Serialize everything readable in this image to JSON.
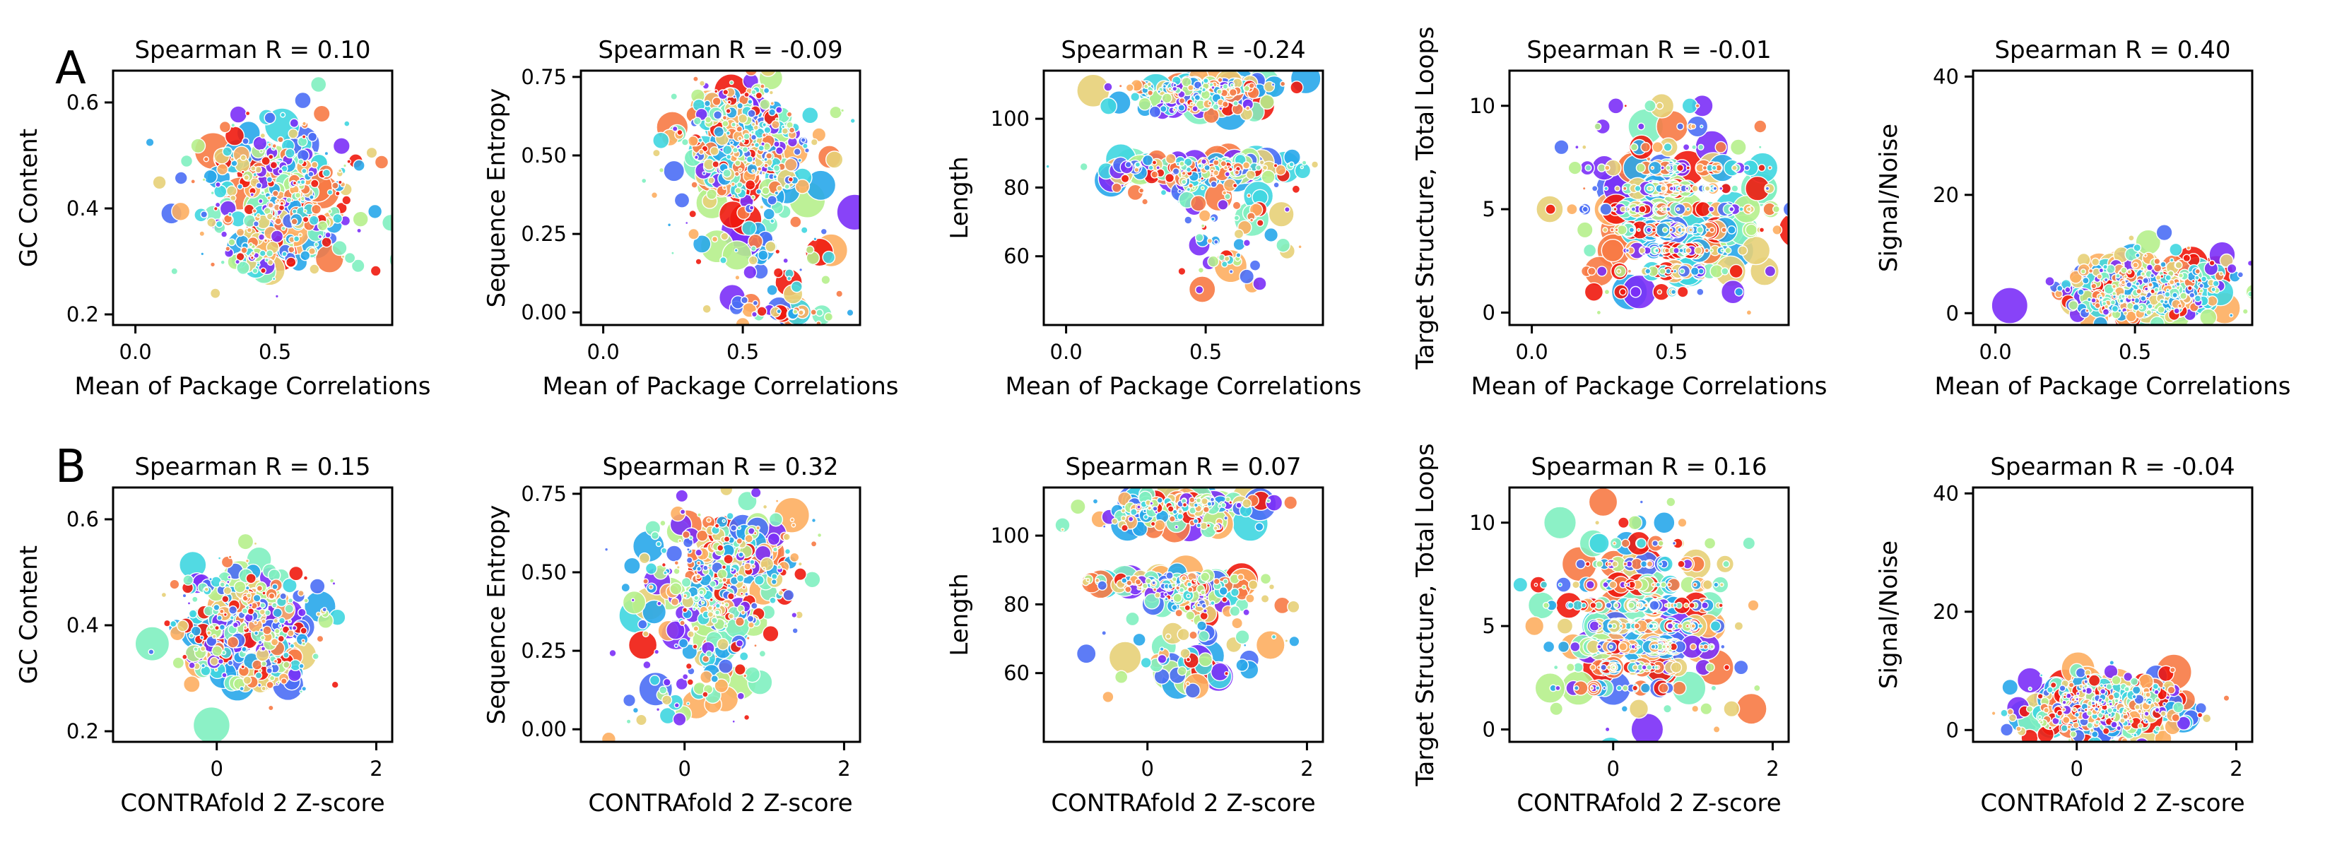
{
  "figure": {
    "rows": [
      {
        "letter": "A",
        "xlabel": "Mean of Package Correlations"
      },
      {
        "letter": "B",
        "xlabel": "CONTRAfold 2 Z-score"
      }
    ],
    "palette": [
      "#7b2ff7",
      "#4b6ef5",
      "#28a7ea",
      "#3fd6e0",
      "#7ff0c0",
      "#b6f08c",
      "#e7d078",
      "#fdae61",
      "#f77a45",
      "#f01a0e"
    ]
  },
  "chart_data": [
    {
      "type": "scatter",
      "row": 0,
      "col": 0,
      "title": "Spearman R = 0.10",
      "xlabel": "Mean of Package Correlations",
      "ylabel": "GC Content",
      "xlim": [
        -0.08,
        0.92
      ],
      "ylim": [
        0.18,
        0.66
      ],
      "xticks": [
        {
          "v": 0.0,
          "label": "0.0"
        },
        {
          "v": 0.5,
          "label": "0.5"
        }
      ],
      "yticks": [
        {
          "v": 0.2,
          "label": "0.2"
        },
        {
          "v": 0.4,
          "label": "0.4"
        },
        {
          "v": 0.6,
          "label": "0.6"
        }
      ],
      "clouds": [
        {
          "cx": 0.5,
          "cy": 0.42,
          "sx": 0.15,
          "sy": 0.065,
          "n": 260
        },
        {
          "cx": 0.55,
          "cy": 0.47,
          "sx": 0.12,
          "sy": 0.05,
          "n": 90
        },
        {
          "cx": 0.45,
          "cy": 0.31,
          "sx": 0.08,
          "sy": 0.025,
          "n": 45
        }
      ]
    },
    {
      "type": "scatter",
      "row": 0,
      "col": 1,
      "title": "Spearman R = -0.09",
      "xlabel": "Mean of Package Correlations",
      "ylabel": "Sequence Entropy",
      "xlim": [
        -0.08,
        0.92
      ],
      "ylim": [
        -0.04,
        0.77
      ],
      "xticks": [
        {
          "v": 0.0,
          "label": "0.0"
        },
        {
          "v": 0.5,
          "label": "0.5"
        }
      ],
      "yticks": [
        {
          "v": 0.0,
          "label": "0.00"
        },
        {
          "v": 0.25,
          "label": "0.25"
        },
        {
          "v": 0.5,
          "label": "0.50"
        },
        {
          "v": 0.75,
          "label": "0.75"
        }
      ],
      "clouds": [
        {
          "cx": 0.5,
          "cy": 0.52,
          "sx": 0.14,
          "sy": 0.11,
          "n": 260
        },
        {
          "cx": 0.5,
          "cy": 0.62,
          "sx": 0.1,
          "sy": 0.06,
          "n": 80
        },
        {
          "cx": 0.55,
          "cy": 0.18,
          "sx": 0.14,
          "sy": 0.11,
          "n": 60
        },
        {
          "cx": 0.65,
          "cy": 0.0,
          "sx": 0.08,
          "sy": 0.004,
          "n": 25
        }
      ]
    },
    {
      "type": "scatter",
      "row": 0,
      "col": 2,
      "title": "Spearman R = -0.24",
      "xlabel": "Mean of Package Correlations",
      "ylabel": "Length",
      "xlim": [
        -0.08,
        0.92
      ],
      "ylim": [
        40,
        114
      ],
      "xticks": [
        {
          "v": 0.0,
          "label": "0.0"
        },
        {
          "v": 0.5,
          "label": "0.5"
        }
      ],
      "yticks": [
        {
          "v": 60,
          "label": "60"
        },
        {
          "v": 80,
          "label": "80"
        },
        {
          "v": 100,
          "label": "100"
        }
      ],
      "clouds": [
        {
          "cx": 0.5,
          "cy": 109,
          "sx": 0.14,
          "sy": 1.2,
          "n": 120
        },
        {
          "cx": 0.48,
          "cy": 104,
          "sx": 0.12,
          "sy": 1.5,
          "n": 60
        },
        {
          "cx": 0.52,
          "cy": 86,
          "sx": 0.16,
          "sy": 1.2,
          "n": 120
        },
        {
          "cx": 0.45,
          "cy": 82,
          "sx": 0.15,
          "sy": 3.0,
          "n": 60
        },
        {
          "cx": 0.6,
          "cy": 64,
          "sx": 0.1,
          "sy": 8.0,
          "n": 60
        }
      ]
    },
    {
      "type": "scatter",
      "row": 0,
      "col": 3,
      "title": "Spearman R = -0.01",
      "xlabel": "Mean of Package Correlations",
      "ylabel": "Target Structure, Total Loops",
      "xlim": [
        -0.08,
        0.92
      ],
      "ylim": [
        -0.6,
        11.7
      ],
      "xticks": [
        {
          "v": 0.0,
          "label": "0.0"
        },
        {
          "v": 0.5,
          "label": "0.5"
        }
      ],
      "yticks": [
        {
          "v": 0,
          "label": "0"
        },
        {
          "v": 5,
          "label": "5"
        },
        {
          "v": 10,
          "label": "10"
        }
      ],
      "integerY": true,
      "clouds": [
        {
          "cx": 0.5,
          "cy": 4.8,
          "sx": 0.16,
          "sy": 2.2,
          "n": 420
        }
      ]
    },
    {
      "type": "scatter",
      "row": 0,
      "col": 4,
      "title": "Spearman R = 0.40",
      "xlabel": "Mean of Package Correlations",
      "ylabel": "Signal/Noise",
      "xlim": [
        -0.08,
        0.92
      ],
      "ylim": [
        -2,
        41
      ],
      "xticks": [
        {
          "v": 0.0,
          "label": "0.0"
        },
        {
          "v": 0.5,
          "label": "0.5"
        }
      ],
      "yticks": [
        {
          "v": 0,
          "label": "0"
        },
        {
          "v": 20,
          "label": "20"
        },
        {
          "v": 40,
          "label": "40"
        }
      ],
      "clouds": [
        {
          "cx": 0.55,
          "cy": 4.5,
          "sx": 0.14,
          "sy": 2.8,
          "n": 330
        },
        {
          "cx": 0.45,
          "cy": 2.0,
          "sx": 0.12,
          "sy": 1.2,
          "n": 80
        }
      ]
    },
    {
      "type": "scatter",
      "row": 1,
      "col": 0,
      "title": "Spearman R = 0.15",
      "xlabel": "CONTRAfold 2 Z-score",
      "ylabel": "GC Content",
      "xlim": [
        -1.3,
        2.2
      ],
      "ylim": [
        0.18,
        0.66
      ],
      "xticks": [
        {
          "v": 0,
          "label": "0"
        },
        {
          "v": 2,
          "label": "2"
        }
      ],
      "yticks": [
        {
          "v": 0.2,
          "label": "0.2"
        },
        {
          "v": 0.4,
          "label": "0.4"
        },
        {
          "v": 0.6,
          "label": "0.6"
        }
      ],
      "clouds": [
        {
          "cx": 0.4,
          "cy": 0.41,
          "sx": 0.48,
          "sy": 0.055,
          "n": 280
        },
        {
          "cx": 0.5,
          "cy": 0.31,
          "sx": 0.3,
          "sy": 0.025,
          "n": 50
        }
      ]
    },
    {
      "type": "scatter",
      "row": 1,
      "col": 1,
      "title": "Spearman R = 0.32",
      "xlabel": "CONTRAfold 2 Z-score",
      "ylabel": "Sequence Entropy",
      "xlim": [
        -1.3,
        2.2
      ],
      "ylim": [
        -0.04,
        0.77
      ],
      "xticks": [
        {
          "v": 0,
          "label": "0"
        },
        {
          "v": 2,
          "label": "2"
        }
      ],
      "yticks": [
        {
          "v": 0.0,
          "label": "0.00"
        },
        {
          "v": 0.25,
          "label": "0.25"
        },
        {
          "v": 0.5,
          "label": "0.50"
        },
        {
          "v": 0.75,
          "label": "0.75"
        }
      ],
      "clouds": [
        {
          "cx": 0.4,
          "cy": 0.45,
          "sx": 0.5,
          "sy": 0.12,
          "n": 280
        },
        {
          "cx": 0.8,
          "cy": 0.58,
          "sx": 0.4,
          "sy": 0.06,
          "n": 60
        },
        {
          "cx": 0.1,
          "cy": 0.12,
          "sx": 0.5,
          "sy": 0.08,
          "n": 50
        }
      ]
    },
    {
      "type": "scatter",
      "row": 1,
      "col": 2,
      "title": "Spearman R = 0.07",
      "xlabel": "CONTRAfold 2 Z-score",
      "ylabel": "Length",
      "xlim": [
        -1.3,
        2.2
      ],
      "ylim": [
        40,
        114
      ],
      "xticks": [
        {
          "v": 0,
          "label": "0"
        },
        {
          "v": 2,
          "label": "2"
        }
      ],
      "yticks": [
        {
          "v": 60,
          "label": "60"
        },
        {
          "v": 80,
          "label": "80"
        },
        {
          "v": 100,
          "label": "100"
        }
      ],
      "clouds": [
        {
          "cx": 0.5,
          "cy": 109,
          "sx": 0.45,
          "sy": 1.2,
          "n": 110
        },
        {
          "cx": 0.3,
          "cy": 104,
          "sx": 0.5,
          "sy": 1.5,
          "n": 50
        },
        {
          "cx": 0.4,
          "cy": 86,
          "sx": 0.55,
          "sy": 1.2,
          "n": 120
        },
        {
          "cx": 0.6,
          "cy": 81,
          "sx": 0.4,
          "sy": 3.0,
          "n": 60
        },
        {
          "cx": 0.5,
          "cy": 65,
          "sx": 0.5,
          "sy": 7.0,
          "n": 60
        }
      ]
    },
    {
      "type": "scatter",
      "row": 1,
      "col": 3,
      "title": "Spearman R = 0.16",
      "xlabel": "CONTRAfold 2 Z-score",
      "ylabel": "Target Structure, Total Loops",
      "xlim": [
        -1.3,
        2.2
      ],
      "ylim": [
        -0.6,
        11.7
      ],
      "xticks": [
        {
          "v": 0,
          "label": "0"
        },
        {
          "v": 2,
          "label": "2"
        }
      ],
      "yticks": [
        {
          "v": 0,
          "label": "0"
        },
        {
          "v": 5,
          "label": "5"
        },
        {
          "v": 10,
          "label": "10"
        }
      ],
      "integerY": true,
      "clouds": [
        {
          "cx": 0.4,
          "cy": 5.0,
          "sx": 0.55,
          "sy": 2.2,
          "n": 420
        }
      ]
    },
    {
      "type": "scatter",
      "row": 1,
      "col": 4,
      "title": "Spearman R = -0.04",
      "xlabel": "CONTRAfold 2 Z-score",
      "ylabel": "Signal/Noise",
      "xlim": [
        -1.3,
        2.2
      ],
      "ylim": [
        -2,
        41
      ],
      "xticks": [
        {
          "v": 0,
          "label": "0"
        },
        {
          "v": 2,
          "label": "2"
        }
      ],
      "yticks": [
        {
          "v": 0,
          "label": "0"
        },
        {
          "v": 20,
          "label": "20"
        },
        {
          "v": 40,
          "label": "40"
        }
      ],
      "clouds": [
        {
          "cx": 0.4,
          "cy": 4.0,
          "sx": 0.5,
          "sy": 2.8,
          "n": 330
        },
        {
          "cx": 0.2,
          "cy": 2.0,
          "sx": 0.5,
          "sy": 1.2,
          "n": 80
        }
      ]
    }
  ]
}
